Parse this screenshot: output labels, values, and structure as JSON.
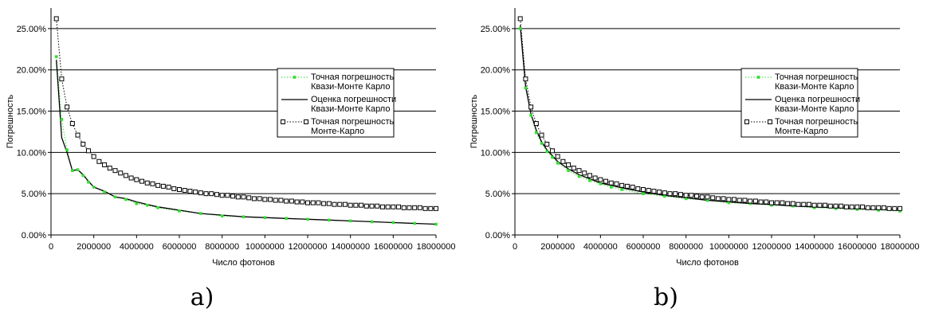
{
  "figure": {
    "panel_labels": [
      "a)",
      "b)"
    ]
  },
  "chart_data": [
    {
      "type": "line",
      "panel": "a)",
      "title": "",
      "xlabel": "Число фотонов",
      "ylabel": "Погрешность",
      "xlim": [
        0,
        18000000
      ],
      "ylim": [
        0,
        0.275
      ],
      "x_ticks": [
        0,
        2000000,
        4000000,
        6000000,
        8000000,
        10000000,
        12000000,
        14000000,
        16000000,
        18000000
      ],
      "x_tick_labels": [
        "0",
        "2000000",
        "4000000",
        "6000000",
        "8000000",
        "10000000",
        "12000000",
        "14000000",
        "16000000",
        "18000000"
      ],
      "y_ticks": [
        0,
        0.05,
        0.1,
        0.15,
        0.2,
        0.25
      ],
      "y_tick_labels": [
        "0.00%",
        "5.00%",
        "10.00%",
        "15.00%",
        "20.00%",
        "25.00%"
      ],
      "grid": "horizontal",
      "legend_position": "right",
      "series": [
        {
          "name": "Точная погрешность Квази-Монте Карло",
          "style": "dotted-with-green-markers",
          "color": "#33dd33",
          "x": [
            250000,
            500000,
            750000,
            1000000,
            1250000,
            1500000,
            1750000,
            2000000,
            2500000,
            3000000,
            3500000,
            4000000,
            4500000,
            5000000,
            6000000,
            7000000,
            8000000,
            9000000,
            10000000,
            11000000,
            12000000,
            13000000,
            14000000,
            15000000,
            16000000,
            17000000,
            18000000
          ],
          "y": [
            0.216,
            0.14,
            0.103,
            0.078,
            0.079,
            0.072,
            0.064,
            0.058,
            0.052,
            0.046,
            0.043,
            0.038,
            0.036,
            0.033,
            0.029,
            0.026,
            0.023,
            0.022,
            0.021,
            0.02,
            0.019,
            0.018,
            0.017,
            0.016,
            0.015,
            0.014,
            0.013
          ]
        },
        {
          "name": "Оценка погрешности Квази-Монте Карло",
          "style": "solid",
          "color": "#000000",
          "x": [
            250000,
            500000,
            750000,
            1000000,
            1250000,
            1500000,
            1750000,
            2000000,
            2500000,
            3000000,
            3500000,
            4000000,
            4500000,
            5000000,
            6000000,
            7000000,
            8000000,
            9000000,
            10000000,
            11000000,
            12000000,
            13000000,
            14000000,
            15000000,
            16000000,
            17000000,
            18000000
          ],
          "y": [
            0.212,
            0.118,
            0.1,
            0.078,
            0.079,
            0.073,
            0.065,
            0.058,
            0.053,
            0.046,
            0.044,
            0.04,
            0.037,
            0.034,
            0.03,
            0.026,
            0.024,
            0.022,
            0.021,
            0.02,
            0.019,
            0.018,
            0.017,
            0.016,
            0.015,
            0.014,
            0.013
          ]
        },
        {
          "name": "Точная погрешность Монте-Карло",
          "style": "dotted-with-square-markers",
          "color": "#000000",
          "x": [
            250000,
            500000,
            750000,
            1000000,
            1250000,
            1500000,
            1750000,
            2000000,
            2250000,
            2500000,
            2750000,
            3000000,
            3250000,
            3500000,
            3750000,
            4000000,
            4250000,
            4500000,
            4750000,
            5000000,
            5250000,
            5500000,
            5750000,
            6000000,
            6250000,
            6500000,
            6750000,
            7000000,
            7250000,
            7500000,
            7750000,
            8000000,
            8250000,
            8500000,
            8750000,
            9000000,
            9250000,
            9500000,
            9750000,
            10000000,
            10250000,
            10500000,
            10750000,
            11000000,
            11250000,
            11500000,
            11750000,
            12000000,
            12250000,
            12500000,
            12750000,
            13000000,
            13250000,
            13500000,
            13750000,
            14000000,
            14250000,
            14500000,
            14750000,
            15000000,
            15250000,
            15500000,
            15750000,
            16000000,
            16250000,
            16500000,
            16750000,
            17000000,
            17250000,
            17500000,
            17750000,
            18000000
          ],
          "y": [
            0.262,
            0.189,
            0.155,
            0.135,
            0.121,
            0.11,
            0.102,
            0.095,
            0.089,
            0.085,
            0.081,
            0.078,
            0.075,
            0.072,
            0.069,
            0.067,
            0.065,
            0.063,
            0.062,
            0.06,
            0.059,
            0.058,
            0.056,
            0.055,
            0.054,
            0.053,
            0.052,
            0.051,
            0.05,
            0.05,
            0.049,
            0.048,
            0.048,
            0.047,
            0.046,
            0.046,
            0.045,
            0.044,
            0.044,
            0.043,
            0.043,
            0.042,
            0.042,
            0.041,
            0.041,
            0.04,
            0.04,
            0.039,
            0.039,
            0.039,
            0.038,
            0.038,
            0.037,
            0.037,
            0.037,
            0.036,
            0.036,
            0.036,
            0.035,
            0.035,
            0.035,
            0.034,
            0.034,
            0.034,
            0.034,
            0.033,
            0.033,
            0.033,
            0.033,
            0.032,
            0.032,
            0.032
          ]
        }
      ]
    },
    {
      "type": "line",
      "panel": "b)",
      "title": "",
      "xlabel": "Число фотонов",
      "ylabel": "Погрешность",
      "xlim": [
        0,
        18000000
      ],
      "ylim": [
        0,
        0.275
      ],
      "x_ticks": [
        0,
        2000000,
        4000000,
        6000000,
        8000000,
        10000000,
        12000000,
        14000000,
        16000000,
        18000000
      ],
      "x_tick_labels": [
        "0",
        "2000000",
        "4000000",
        "6000000",
        "8000000",
        "10000000",
        "12000000",
        "14000000",
        "16000000",
        "18000000"
      ],
      "y_ticks": [
        0,
        0.05,
        0.1,
        0.15,
        0.2,
        0.25
      ],
      "y_tick_labels": [
        "0.00%",
        "5.00%",
        "10.00%",
        "15.00%",
        "20.00%",
        "25.00%"
      ],
      "grid": "horizontal",
      "legend_position": "right",
      "series": [
        {
          "name": "Точная погрешность Квази-Монте Карло",
          "style": "dotted-with-green-markers",
          "color": "#33dd33",
          "x": [
            250000,
            500000,
            750000,
            1000000,
            1250000,
            1500000,
            1750000,
            2000000,
            2500000,
            3000000,
            3500000,
            4000000,
            4500000,
            5000000,
            6000000,
            7000000,
            8000000,
            9000000,
            10000000,
            11000000,
            12000000,
            13000000,
            14000000,
            15000000,
            16000000,
            17000000,
            18000000
          ],
          "y": [
            0.25,
            0.178,
            0.145,
            0.124,
            0.111,
            0.101,
            0.094,
            0.087,
            0.078,
            0.071,
            0.066,
            0.062,
            0.058,
            0.055,
            0.05,
            0.047,
            0.044,
            0.042,
            0.039,
            0.038,
            0.036,
            0.035,
            0.033,
            0.032,
            0.031,
            0.03,
            0.029
          ]
        },
        {
          "name": "Оценка погрешности Квази-Монте Карло",
          "style": "solid",
          "color": "#000000",
          "x": [
            250000,
            500000,
            750000,
            1000000,
            1250000,
            1500000,
            1750000,
            2000000,
            2500000,
            3000000,
            3500000,
            4000000,
            4500000,
            5000000,
            6000000,
            7000000,
            8000000,
            9000000,
            10000000,
            11000000,
            12000000,
            13000000,
            14000000,
            15000000,
            16000000,
            17000000,
            18000000
          ],
          "y": [
            0.254,
            0.18,
            0.147,
            0.127,
            0.113,
            0.103,
            0.096,
            0.089,
            0.08,
            0.073,
            0.068,
            0.063,
            0.06,
            0.057,
            0.052,
            0.048,
            0.045,
            0.042,
            0.04,
            0.038,
            0.037,
            0.035,
            0.034,
            0.033,
            0.032,
            0.031,
            0.03
          ]
        },
        {
          "name": "Точная погрешность Монте-Карло",
          "style": "dotted-with-square-markers",
          "color": "#000000",
          "x": [
            250000,
            500000,
            750000,
            1000000,
            1250000,
            1500000,
            1750000,
            2000000,
            2250000,
            2500000,
            2750000,
            3000000,
            3250000,
            3500000,
            3750000,
            4000000,
            4250000,
            4500000,
            4750000,
            5000000,
            5250000,
            5500000,
            5750000,
            6000000,
            6250000,
            6500000,
            6750000,
            7000000,
            7250000,
            7500000,
            7750000,
            8000000,
            8250000,
            8500000,
            8750000,
            9000000,
            9250000,
            9500000,
            9750000,
            10000000,
            10250000,
            10500000,
            10750000,
            11000000,
            11250000,
            11500000,
            11750000,
            12000000,
            12250000,
            12500000,
            12750000,
            13000000,
            13250000,
            13500000,
            13750000,
            14000000,
            14250000,
            14500000,
            14750000,
            15000000,
            15250000,
            15500000,
            15750000,
            16000000,
            16250000,
            16500000,
            16750000,
            17000000,
            17250000,
            17500000,
            17750000,
            18000000
          ],
          "y": [
            0.262,
            0.189,
            0.155,
            0.135,
            0.121,
            0.11,
            0.102,
            0.095,
            0.089,
            0.085,
            0.081,
            0.078,
            0.075,
            0.072,
            0.069,
            0.067,
            0.065,
            0.063,
            0.062,
            0.06,
            0.059,
            0.058,
            0.056,
            0.055,
            0.054,
            0.053,
            0.052,
            0.051,
            0.05,
            0.05,
            0.049,
            0.048,
            0.048,
            0.047,
            0.046,
            0.046,
            0.045,
            0.044,
            0.044,
            0.043,
            0.043,
            0.042,
            0.042,
            0.041,
            0.041,
            0.04,
            0.04,
            0.039,
            0.039,
            0.039,
            0.038,
            0.038,
            0.037,
            0.037,
            0.037,
            0.036,
            0.036,
            0.036,
            0.035,
            0.035,
            0.035,
            0.034,
            0.034,
            0.034,
            0.034,
            0.033,
            0.033,
            0.033,
            0.033,
            0.032,
            0.032,
            0.032
          ]
        }
      ]
    }
  ]
}
